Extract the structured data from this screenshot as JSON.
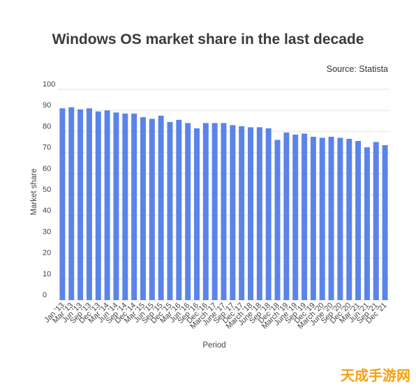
{
  "chart_data": {
    "type": "bar",
    "title": "Windows OS market share in the last decade",
    "source": "Source: Statista",
    "xlabel": "Period",
    "ylabel": "Market share",
    "ylim": [
      0,
      100
    ],
    "yticks": [
      0,
      10,
      20,
      30,
      40,
      50,
      60,
      70,
      80,
      90,
      100
    ],
    "grid": true,
    "bar_color": "#5a84e8",
    "categories": [
      "Jan '13",
      "Mar '13",
      "Jun '13",
      "Sep '13",
      "Dec '13",
      "Mar '14",
      "Jun '14",
      "Sep '14",
      "Dec '14",
      "Mar '15",
      "Jun '15",
      "Sep '15",
      "Dec '15",
      "Mar '16",
      "Jun '16",
      "Sep '16",
      "Dec '16",
      "March '17",
      "June '17",
      "Sep '17",
      "Dec '17",
      "March '18",
      "June '18",
      "Sep '18",
      "Dec '18",
      "March '19",
      "June '19",
      "Sep '19",
      "Dec '19",
      "March '20",
      "June '20",
      "Sep '20",
      "Dec '20",
      "Mar '21",
      "Jun '21",
      "Sep '21",
      "Dec '21"
    ],
    "values": [
      91,
      91.5,
      90.5,
      91,
      89.5,
      90,
      89,
      88.5,
      88.5,
      86.8,
      86,
      87.5,
      84.5,
      85.5,
      84,
      81.5,
      84,
      84,
      84,
      83,
      82.5,
      82,
      82,
      81.5,
      76,
      79.5,
      78.5,
      79,
      77.5,
      77,
      77.5,
      77,
      76.5,
      75.5,
      72.5,
      75,
      73.5
    ]
  },
  "watermark": "天成手游网"
}
